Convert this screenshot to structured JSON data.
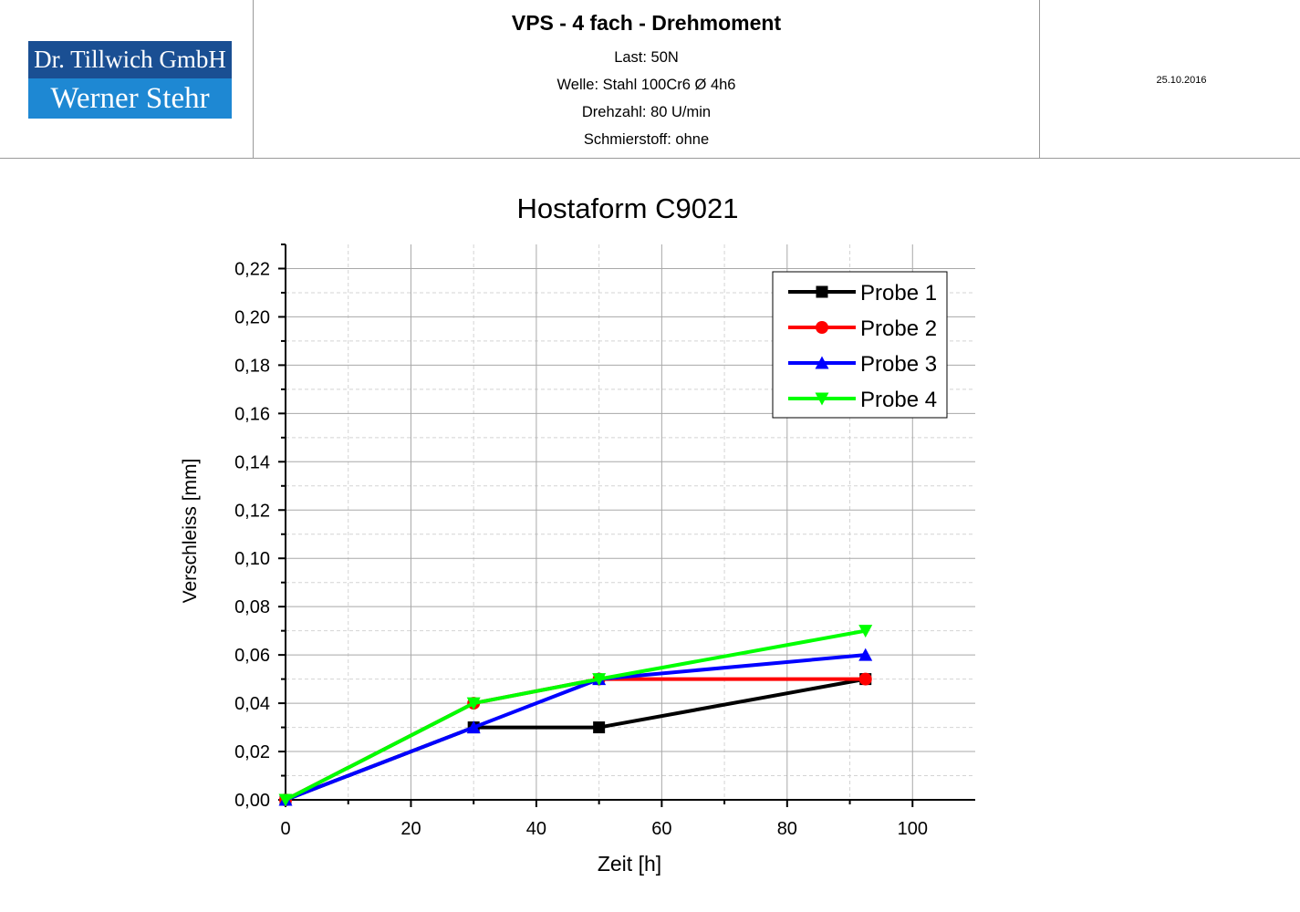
{
  "header": {
    "logo_line1": "Dr. Tillwich GmbH",
    "logo_line2": "Werner Stehr",
    "title": "VPS - 4 fach - Drehmoment",
    "subtitles": [
      "Last: 50N",
      "Welle: Stahl 100Cr6 Ø 4h6",
      "Drehzahl: 80 U/min",
      "Schmierstoff: ohne"
    ],
    "date": "25.10.2016"
  },
  "chart_data": {
    "type": "line",
    "title": "Hostaform C9021",
    "xlabel": "Zeit [h]",
    "ylabel": "Verschleiss [mm]",
    "xlim": [
      0,
      110
    ],
    "ylim": [
      0,
      0.23
    ],
    "xticks": [
      0,
      20,
      40,
      60,
      80,
      100
    ],
    "xtick_labels": [
      "0",
      "20",
      "40",
      "60",
      "80",
      "100"
    ],
    "yticks": [
      0,
      0.02,
      0.04,
      0.06,
      0.08,
      0.1,
      0.12,
      0.14,
      0.16,
      0.18,
      0.2,
      0.22
    ],
    "ytick_labels": [
      "0,00",
      "0,02",
      "0,04",
      "0,06",
      "0,08",
      "0,10",
      "0,12",
      "0,14",
      "0,16",
      "0,18",
      "0,20",
      "0,22"
    ],
    "grid": true,
    "legend_position": "top-right",
    "x": [
      0,
      30,
      50,
      92.5
    ],
    "series": [
      {
        "name": "Probe 1",
        "values": [
          0,
          0.03,
          0.03,
          0.05
        ],
        "color": "#000000",
        "marker": "square"
      },
      {
        "name": "Probe 2",
        "values": [
          0,
          0.04,
          0.05,
          0.05
        ],
        "color": "#ff0000",
        "marker": "circle"
      },
      {
        "name": "Probe 3",
        "values": [
          0,
          0.03,
          0.05,
          0.06
        ],
        "color": "#0000ff",
        "marker": "triangle-up"
      },
      {
        "name": "Probe 4",
        "values": [
          0,
          0.04,
          0.05,
          0.07
        ],
        "color": "#00ff00",
        "marker": "triangle-down"
      }
    ]
  }
}
